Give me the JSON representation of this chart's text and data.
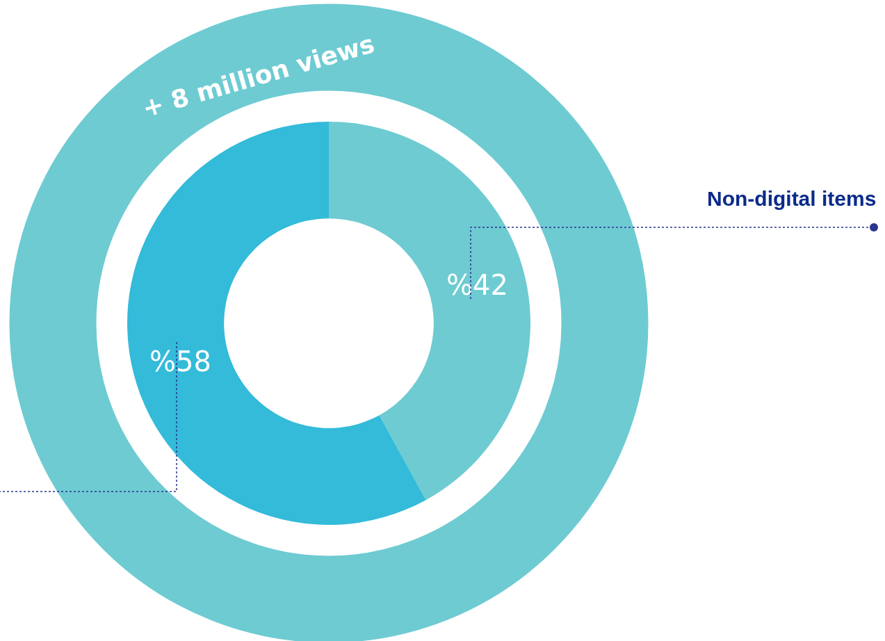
{
  "chart_data": {
    "type": "donut",
    "title": "+ 8 million views",
    "categories": [
      "Non-digital items",
      null
    ],
    "values": [
      42,
      58
    ],
    "value_labels": [
      "%42",
      "%58"
    ],
    "colors": [
      "#6ecbd2",
      "#33bbd9"
    ],
    "legend": false
  }
}
